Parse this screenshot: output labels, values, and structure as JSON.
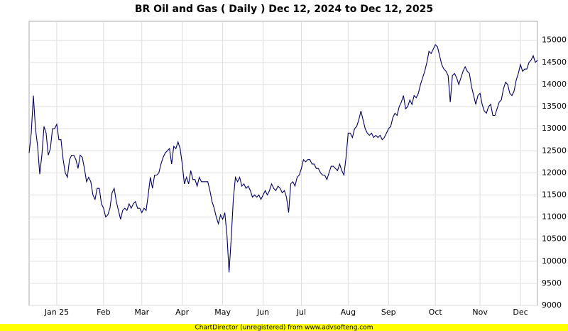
{
  "chart_data": {
    "type": "line",
    "title": "BR Oil and Gas ( Daily ) Dec 12, 2024 to Dec 12, 2025",
    "footer": "ChartDirector (unregistered) from www.advsofteng.com",
    "categories": [
      null,
      null,
      null,
      null,
      null,
      null,
      null,
      null,
      null,
      null,
      null,
      null,
      null,
      "Jan 25",
      null,
      null,
      null,
      null,
      null,
      null,
      null,
      null,
      null,
      null,
      null,
      null,
      null,
      null,
      null,
      null,
      null,
      null,
      null,
      null,
      null,
      "Feb",
      null,
      null,
      null,
      null,
      null,
      null,
      null,
      null,
      null,
      null,
      null,
      null,
      null,
      null,
      null,
      null,
      null,
      "Mar",
      null,
      null,
      null,
      null,
      null,
      null,
      null,
      null,
      null,
      null,
      null,
      null,
      null,
      null,
      null,
      null,
      null,
      null,
      "Apr",
      null,
      null,
      null,
      null,
      null,
      null,
      null,
      null,
      null,
      null,
      null,
      null,
      null,
      null,
      null,
      null,
      null,
      null,
      "May",
      null,
      null,
      null,
      null,
      null,
      null,
      null,
      null,
      null,
      null,
      null,
      null,
      null,
      null,
      null,
      null,
      null,
      null,
      "Jun",
      null,
      null,
      null,
      null,
      null,
      null,
      null,
      null,
      null,
      null,
      null,
      null,
      null,
      null,
      null,
      null,
      null,
      "Jul",
      null,
      null,
      null,
      null,
      null,
      null,
      null,
      null,
      null,
      null,
      null,
      null,
      null,
      null,
      null,
      null,
      null,
      null,
      null,
      null,
      null,
      "Aug",
      null,
      null,
      null,
      null,
      null,
      null,
      null,
      null,
      null,
      null,
      null,
      null,
      null,
      null,
      null,
      null,
      null,
      null,
      "Sep",
      null,
      null,
      null,
      null,
      null,
      null,
      null,
      null,
      null,
      null,
      null,
      null,
      null,
      null,
      null,
      null,
      null,
      null,
      null,
      null,
      null,
      "Oct",
      null,
      null,
      null,
      null,
      null,
      null,
      null,
      null,
      null,
      null,
      null,
      null,
      null,
      null,
      null,
      null,
      null,
      null,
      null,
      null,
      "Nov",
      null,
      null,
      null,
      null,
      null,
      null,
      null,
      null,
      null,
      null,
      null,
      null,
      null,
      null,
      null,
      null,
      null,
      null,
      "Dec",
      null,
      null,
      null,
      null,
      null,
      null,
      null,
      null
    ],
    "series": [
      {
        "name": "BR Oil and Gas",
        "color": "#000066",
        "values": [
          12450,
          12900,
          13750,
          13000,
          12600,
          11970,
          12400,
          13050,
          12900,
          12400,
          12550,
          13000,
          13000,
          13100,
          12750,
          12750,
          12300,
          12000,
          11900,
          12300,
          12400,
          12400,
          12300,
          12100,
          12400,
          12350,
          12100,
          11800,
          11900,
          11800,
          11500,
          11400,
          11650,
          11650,
          11300,
          11200,
          11000,
          11050,
          11200,
          11550,
          11650,
          11350,
          11150,
          10950,
          11150,
          11200,
          11150,
          11300,
          11200,
          11300,
          11350,
          11200,
          11200,
          11100,
          11200,
          11150,
          11500,
          11900,
          11650,
          11950,
          11950,
          12000,
          12200,
          12350,
          12450,
          12500,
          12550,
          12200,
          12600,
          12550,
          12700,
          12550,
          12200,
          11750,
          11900,
          11750,
          12050,
          11850,
          11850,
          11700,
          11900,
          11800,
          11800,
          11800,
          11800,
          11600,
          11350,
          11200,
          11000,
          10850,
          11050,
          10950,
          11100,
          10600,
          9750,
          10500,
          11400,
          11900,
          11800,
          11900,
          11700,
          11750,
          11650,
          11700,
          11600,
          11450,
          11500,
          11450,
          11500,
          11400,
          11500,
          11600,
          11500,
          11600,
          11750,
          11650,
          11600,
          11700,
          11650,
          11550,
          11600,
          11450,
          11100,
          11750,
          11800,
          11700,
          11900,
          11950,
          12100,
          12300,
          12250,
          12300,
          12300,
          12200,
          12200,
          12100,
          12100,
          12000,
          11950,
          11950,
          11850,
          12000,
          12150,
          12150,
          12100,
          12050,
          12200,
          12050,
          11950,
          12350,
          12900,
          12900,
          12800,
          13000,
          13050,
          13200,
          13400,
          13200,
          13000,
          12900,
          12850,
          12900,
          12800,
          12850,
          12800,
          12850,
          12750,
          12800,
          12900,
          13000,
          13050,
          13250,
          13350,
          13300,
          13500,
          13600,
          13750,
          13450,
          13500,
          13650,
          13550,
          13750,
          13700,
          13800,
          14000,
          14150,
          14300,
          14500,
          14750,
          14700,
          14800,
          14900,
          14850,
          14650,
          14450,
          14350,
          14300,
          14200,
          13600,
          14200,
          14250,
          14150,
          14000,
          14150,
          14300,
          14400,
          14300,
          14250,
          13950,
          13750,
          13550,
          13750,
          13800,
          13550,
          13400,
          13350,
          13500,
          13550,
          13300,
          13300,
          13450,
          13600,
          13650,
          13900,
          14050,
          14000,
          13800,
          13750,
          13850,
          14100,
          14250,
          14450,
          14300,
          14350,
          14350,
          14500,
          14550,
          14650,
          14500,
          14550
        ]
      }
    ],
    "ylim": [
      9000,
      15430
    ],
    "yticks": [
      9000,
      9500,
      10000,
      10500,
      11000,
      11500,
      12000,
      12500,
      13000,
      13500,
      14000,
      14500,
      15000
    ],
    "grid": true
  }
}
